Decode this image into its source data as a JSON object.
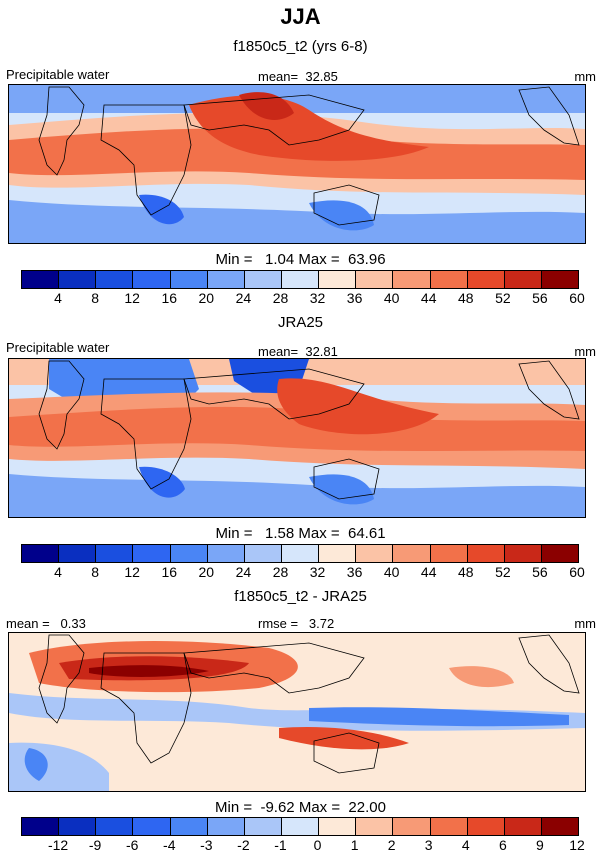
{
  "title": "JJA",
  "panels": [
    {
      "title": "f1850c5_t2 (yrs 6-8)",
      "left_label": "Precipitable water",
      "center_label": "mean=  32.85",
      "right_label": "mm",
      "minmax": "Min =   1.04 Max =  63.96",
      "ticks": [
        "4",
        "8",
        "12",
        "16",
        "20",
        "24",
        "28",
        "32",
        "36",
        "40",
        "44",
        "48",
        "52",
        "56",
        "60"
      ]
    },
    {
      "title": "JRA25",
      "left_label": "Precipitable water",
      "center_label": "mean=  32.81",
      "right_label": "mm",
      "minmax": "Min =   1.58 Max =  64.61",
      "ticks": [
        "4",
        "8",
        "12",
        "16",
        "20",
        "24",
        "28",
        "32",
        "36",
        "40",
        "44",
        "48",
        "52",
        "56",
        "60"
      ]
    },
    {
      "title": "f1850c5_t2 - JRA25",
      "left_label": "mean =   0.33",
      "center_label": "rmse =   3.72",
      "right_label": "mm",
      "minmax": "Min =  -9.62 Max =  22.00",
      "ticks": [
        "-12",
        "-9",
        "-6",
        "-4",
        "-3",
        "-2",
        "-1",
        "0",
        "1",
        "2",
        "3",
        "4",
        "6",
        "9",
        "12"
      ]
    }
  ],
  "colorbar_colors": [
    "#00008b",
    "#0a2fc0",
    "#1a4fe0",
    "#2e66f2",
    "#4a85f5",
    "#7aa6f7",
    "#aac6f8",
    "#d6e6fb",
    "#fde9d8",
    "#fbc3a6",
    "#f79a76",
    "#f2714a",
    "#e6492a",
    "#c92818",
    "#8b0000"
  ]
}
